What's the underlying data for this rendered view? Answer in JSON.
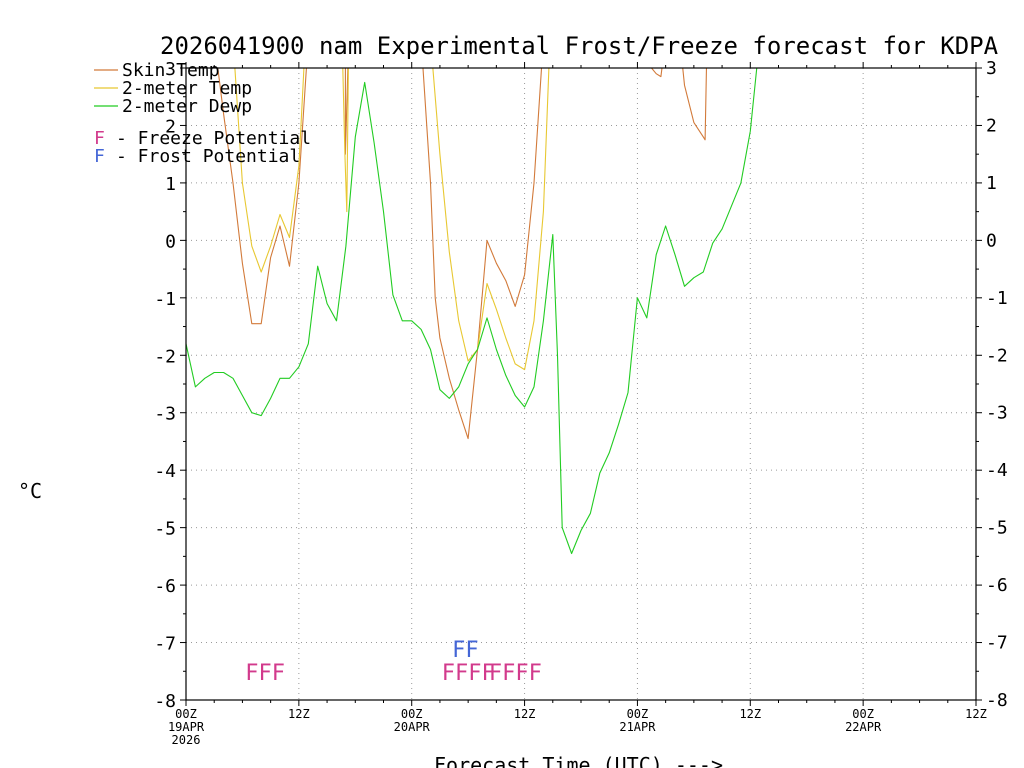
{
  "chart_data": {
    "type": "line",
    "title": "2026041900 nam Experimental Frost/Freeze forecast for KDPA",
    "ylabel": "°C",
    "xlabel": "Forecast Time (UTC) --->",
    "ylim": [
      -8,
      3
    ],
    "yticks": [
      3,
      2,
      1,
      0,
      -1,
      -2,
      -3,
      -4,
      -5,
      -6,
      -7,
      -8
    ],
    "xlim_hours": [
      0,
      84
    ],
    "xticks": [
      {
        "hour": 0,
        "label": "00Z",
        "sub1": "19APR",
        "sub2": "2026"
      },
      {
        "hour": 12,
        "label": "12Z",
        "sub1": "",
        "sub2": ""
      },
      {
        "hour": 24,
        "label": "00Z",
        "sub1": "20APR",
        "sub2": ""
      },
      {
        "hour": 36,
        "label": "12Z",
        "sub1": "",
        "sub2": ""
      },
      {
        "hour": 48,
        "label": "00Z",
        "sub1": "21APR",
        "sub2": ""
      },
      {
        "hour": 60,
        "label": "12Z",
        "sub1": "",
        "sub2": ""
      },
      {
        "hour": 72,
        "label": "00Z",
        "sub1": "22APR",
        "sub2": ""
      },
      {
        "hour": 84,
        "label": "12Z",
        "sub1": "",
        "sub2": ""
      }
    ],
    "grid": true,
    "legend": {
      "position": "top-left",
      "entries": [
        {
          "name": "Skin Temp",
          "color": "#d27a3a"
        },
        {
          "name": "2-meter Temp",
          "color": "#e8c832"
        },
        {
          "name": "2-meter Dewp",
          "color": "#22cc22"
        }
      ],
      "potentials": [
        {
          "symbol": "F",
          "text": "- Freeze Potential",
          "color": "#d23a8c"
        },
        {
          "symbol": "F",
          "text": "- Frost Potential",
          "color": "#4466d6"
        }
      ]
    },
    "series": [
      {
        "name": "Skin Temp",
        "color": "#d27a3a",
        "segments": [
          [
            [
              3,
              3.5
            ],
            [
              4,
              2.2
            ],
            [
              5,
              1.0
            ],
            [
              6,
              -0.4
            ],
            [
              7,
              -1.45
            ],
            [
              8,
              -1.45
            ],
            [
              9,
              -0.3
            ],
            [
              10,
              0.25
            ],
            [
              11,
              -0.45
            ],
            [
              12,
              1.0
            ],
            [
              13,
              3.5
            ]
          ],
          [
            [
              16.95,
              3.5
            ],
            [
              16.95,
              1.5
            ],
            [
              17.3,
              3.5
            ]
          ],
          [
            [
              25,
              3.5
            ],
            [
              26,
              1.0
            ],
            [
              26.5,
              -1.0
            ],
            [
              27,
              -1.7
            ],
            [
              28,
              -2.4
            ],
            [
              29,
              -2.95
            ],
            [
              30,
              -3.45
            ],
            [
              31,
              -1.9
            ],
            [
              32,
              0.0
            ],
            [
              33,
              -0.4
            ],
            [
              34,
              -0.7
            ],
            [
              35,
              -1.15
            ],
            [
              36,
              -0.6
            ],
            [
              37,
              1.0
            ],
            [
              38,
              3.5
            ]
          ],
          [
            [
              49,
              3.1
            ],
            [
              50,
              2.9
            ],
            [
              50.5,
              2.85
            ],
            [
              51,
              3.5
            ]
          ],
          [
            [
              52.5,
              3.5
            ],
            [
              53,
              2.7
            ],
            [
              54,
              2.05
            ],
            [
              55,
              1.8
            ],
            [
              55.2,
              1.75
            ],
            [
              55.4,
              3.5
            ]
          ]
        ]
      },
      {
        "name": "2-meter Temp",
        "color": "#e8c832",
        "segments": [
          [
            [
              5,
              3.5
            ],
            [
              6,
              1.0
            ],
            [
              7,
              -0.1
            ],
            [
              8,
              -0.55
            ],
            [
              9,
              -0.1
            ],
            [
              10,
              0.45
            ],
            [
              11,
              0.05
            ],
            [
              12,
              1.3
            ],
            [
              12.7,
              3.5
            ]
          ],
          [
            [
              16.6,
              3.5
            ],
            [
              16.9,
              1.5
            ],
            [
              17.1,
              0.5
            ],
            [
              17.3,
              3.5
            ]
          ],
          [
            [
              26,
              3.5
            ],
            [
              27,
              1.5
            ],
            [
              28,
              -0.2
            ],
            [
              29,
              -1.4
            ],
            [
              30,
              -2.1
            ],
            [
              31,
              -1.9
            ],
            [
              32,
              -0.75
            ],
            [
              33,
              -1.2
            ],
            [
              34,
              -1.7
            ],
            [
              35,
              -2.15
            ],
            [
              36,
              -2.25
            ],
            [
              37,
              -1.4
            ],
            [
              38,
              0.5
            ],
            [
              38.7,
              3.5
            ]
          ]
        ]
      },
      {
        "name": "2-meter Dewp",
        "color": "#22cc22",
        "segments": [
          [
            [
              0,
              -1.8
            ],
            [
              1,
              -2.55
            ],
            [
              2,
              -2.4
            ],
            [
              3,
              -2.3
            ],
            [
              4,
              -2.3
            ],
            [
              5,
              -2.4
            ],
            [
              6,
              -2.7
            ],
            [
              7,
              -3.0
            ],
            [
              8,
              -3.05
            ],
            [
              9,
              -2.75
            ],
            [
              10,
              -2.4
            ],
            [
              11,
              -2.4
            ],
            [
              12,
              -2.2
            ],
            [
              13,
              -1.8
            ],
            [
              14,
              -0.45
            ],
            [
              15,
              -1.1
            ],
            [
              16,
              -1.4
            ],
            [
              17,
              -0.1
            ],
            [
              18,
              1.8
            ],
            [
              19,
              2.75
            ],
            [
              20,
              1.7
            ],
            [
              21,
              0.5
            ],
            [
              22,
              -0.95
            ],
            [
              23,
              -1.4
            ],
            [
              24,
              -1.4
            ],
            [
              25,
              -1.55
            ],
            [
              26,
              -1.9
            ],
            [
              27,
              -2.6
            ],
            [
              28,
              -2.75
            ],
            [
              29,
              -2.55
            ],
            [
              30,
              -2.15
            ],
            [
              31,
              -1.9
            ],
            [
              32,
              -1.35
            ],
            [
              33,
              -1.9
            ],
            [
              34,
              -2.35
            ],
            [
              35,
              -2.7
            ],
            [
              36,
              -2.9
            ],
            [
              37,
              -2.55
            ],
            [
              38,
              -1.4
            ],
            [
              39,
              0.1
            ],
            [
              39.5,
              -2.0
            ],
            [
              40,
              -5.0
            ],
            [
              41,
              -5.45
            ],
            [
              42,
              -5.05
            ],
            [
              43,
              -4.75
            ],
            [
              44,
              -4.05
            ],
            [
              45,
              -3.7
            ],
            [
              46,
              -3.2
            ],
            [
              47,
              -2.65
            ],
            [
              48,
              -1.0
            ],
            [
              49,
              -1.35
            ],
            [
              50,
              -0.25
            ],
            [
              51,
              0.25
            ],
            [
              52,
              -0.25
            ],
            [
              53,
              -0.8
            ],
            [
              54,
              -0.65
            ],
            [
              55,
              -0.55
            ],
            [
              56,
              -0.05
            ],
            [
              57,
              0.2
            ],
            [
              58,
              0.6
            ],
            [
              59,
              1.0
            ],
            [
              60,
              1.9
            ],
            [
              61,
              3.5
            ]
          ]
        ]
      }
    ],
    "frost_freeze_marks": [
      {
        "kind": "freeze",
        "text": "FFF",
        "start_hour": 6.3,
        "color": "#d23a8c"
      },
      {
        "kind": "freeze",
        "text": "FFFF",
        "start_hour": 27.2,
        "color": "#d23a8c"
      },
      {
        "kind": "freeze",
        "text": "FFFF",
        "start_hour": 32.2,
        "color": "#d23a8c"
      },
      {
        "kind": "frost",
        "text": "FF",
        "start_hour": 28.3,
        "color": "#4466d6"
      }
    ]
  }
}
